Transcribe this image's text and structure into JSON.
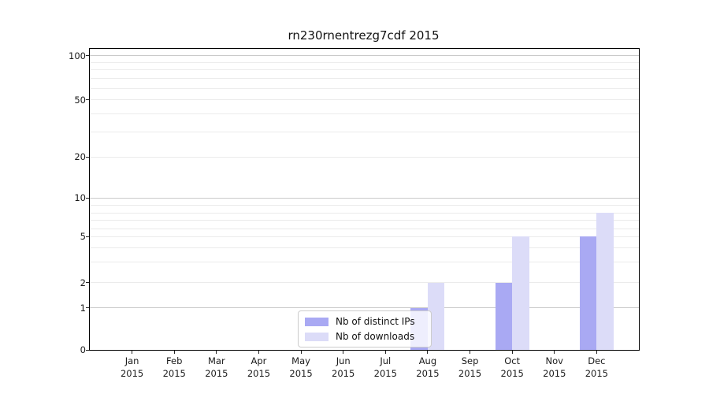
{
  "figure": {
    "title": "rn230rnentrezg7cdf 2015"
  },
  "chart_data": {
    "type": "bar",
    "title": "rn230rnentrezg7cdf 2015",
    "categories": [
      "Jan",
      "Feb",
      "Mar",
      "Apr",
      "May",
      "Jun",
      "Jul",
      "Aug",
      "Sep",
      "Oct",
      "Nov",
      "Dec"
    ],
    "category_sublabel": "2015",
    "series": [
      {
        "name": "Nb of distinct IPs",
        "color": "#a9a9f3",
        "values": [
          0,
          0,
          0,
          0,
          0,
          0,
          0,
          1,
          0,
          2,
          0,
          5
        ]
      },
      {
        "name": "Nb of downloads",
        "color": "#dcdcf8",
        "values": [
          0,
          0,
          0,
          0,
          0,
          0,
          0,
          2,
          0,
          5,
          0,
          8
        ]
      }
    ],
    "xlabel": "",
    "ylabel": "",
    "yaxis": {
      "scale": "log-like with zero baseline",
      "tick_values": [
        0,
        1,
        2,
        5,
        10,
        20,
        50,
        100
      ],
      "tick_labels": [
        "0",
        "1",
        "2",
        "5",
        "10",
        "20",
        "50",
        "100"
      ],
      "major_gridlines": [
        1,
        10,
        100
      ],
      "minor_gridlines": [
        2,
        3,
        4,
        5,
        6,
        7,
        8,
        9,
        20,
        30,
        40,
        50,
        60,
        70,
        80,
        90
      ],
      "ylim": [
        0,
        112
      ]
    },
    "grid": "horizontal, major and minor",
    "legend": {
      "position": "inside lower-center-left",
      "entries": [
        "Nb of distinct IPs",
        "Nb of downloads"
      ]
    },
    "colors": {
      "major_grid": "#c9c9c9",
      "minor_grid": "#ebebeb",
      "spine": "#000000",
      "text": "#1a1a1a"
    },
    "value_to_fraction_anchors": [
      [
        0,
        0
      ],
      [
        1,
        0.1393
      ],
      [
        2,
        0.2237
      ],
      [
        3,
        0.2914
      ],
      [
        4,
        0.3392
      ],
      [
        5,
        0.3759
      ],
      [
        6,
        0.4007
      ],
      [
        7,
        0.4294
      ],
      [
        8,
        0.4548
      ],
      [
        9,
        0.4791
      ],
      [
        10,
        0.5045
      ],
      [
        20,
        0.6403
      ],
      [
        30,
        0.7243
      ],
      [
        40,
        0.7838
      ],
      [
        50,
        0.8301
      ],
      [
        60,
        0.8683
      ],
      [
        70,
        0.9012
      ],
      [
        80,
        0.9294
      ],
      [
        90,
        0.9543
      ],
      [
        100,
        0.9765
      ]
    ]
  }
}
